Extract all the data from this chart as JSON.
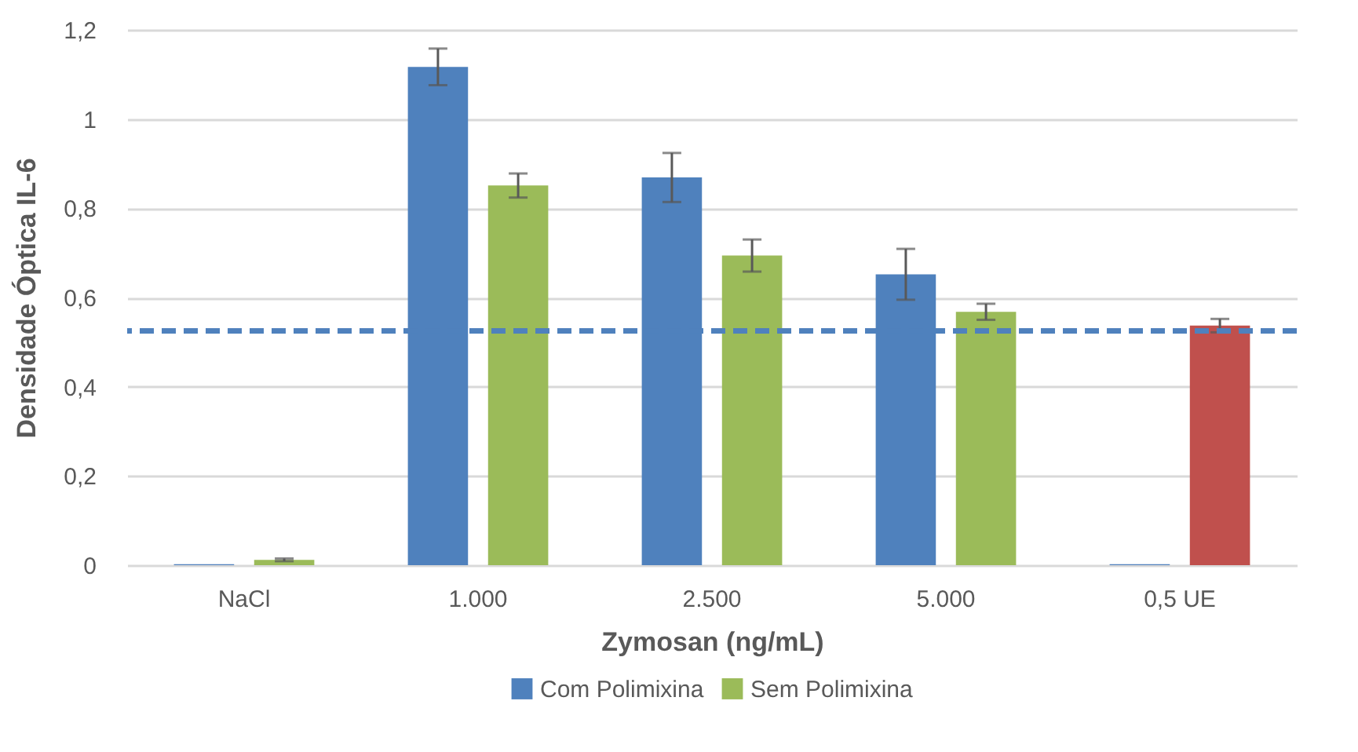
{
  "chart_data": {
    "type": "bar",
    "xlabel": "Zymosan (ng/mL)",
    "ylabel": "Densidade Óptica IL-6",
    "categories": [
      "NaCl",
      "1.000",
      "2.500",
      "5.000",
      "0,5 UE"
    ],
    "series": [
      {
        "name": "Com Polimixina",
        "color": "#4f81bd",
        "values": [
          0.002,
          1.117,
          0.869,
          0.652,
          0.002
        ],
        "errors": [
          null,
          0.041,
          0.055,
          0.057,
          null
        ]
      },
      {
        "name": "Sem Polimixina",
        "color": "#9bbb59",
        "colors": [
          "#9bbb59",
          "#9bbb59",
          "#9bbb59",
          "#9bbb59",
          "#c0504d"
        ],
        "values": [
          0.012,
          0.851,
          0.694,
          0.568,
          0.537
        ],
        "errors": [
          0.003,
          0.027,
          0.036,
          0.018,
          0.015
        ]
      }
    ],
    "ylim": [
      0,
      1.2
    ],
    "yticks": [
      0,
      {
        "value": 0.2,
        "label": "0,2"
      },
      {
        "value": 0.4,
        "label": "0,4"
      },
      {
        "value": 0.6,
        "label": "0,6"
      },
      {
        "value": 0.8,
        "label": "0,8"
      },
      1,
      {
        "value": 1.2,
        "label": "1,2"
      }
    ],
    "ref_lines": [
      {
        "axis": "y",
        "value": 0.525,
        "color": "#4f81bd",
        "line_style": "dashed"
      }
    ],
    "grid": "y",
    "legend": "bottom"
  }
}
